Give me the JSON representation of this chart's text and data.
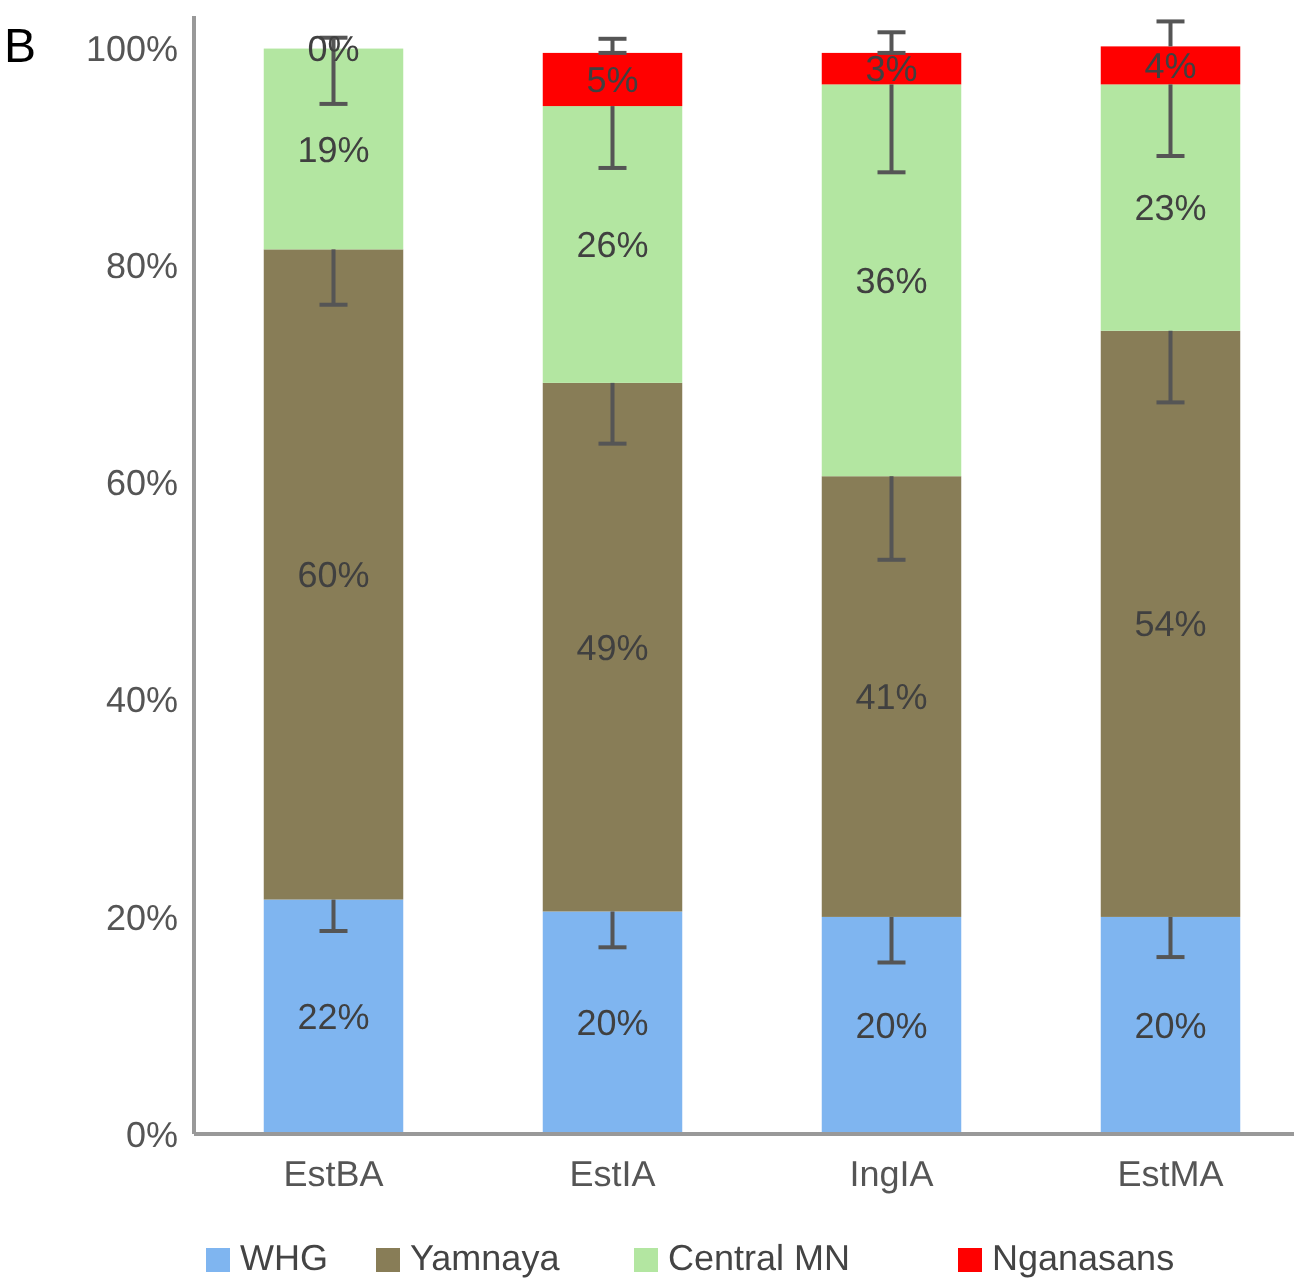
{
  "chart_data": {
    "type": "bar",
    "stacked": true,
    "categories": [
      "EstBA",
      "EstIA",
      "IngIA",
      "EstMA"
    ],
    "series": [
      {
        "name": "WHG",
        "color": "#7fb5f0",
        "values": [
          21.6,
          20.5,
          20.0,
          20.0
        ],
        "value_labels": [
          "22%",
          "20%",
          "20%",
          "20%"
        ],
        "errors": [
          [
            18.7,
            21.6
          ],
          [
            17.2,
            20.5
          ],
          [
            15.8,
            20.0
          ],
          [
            16.3,
            20.0
          ]
        ]
      },
      {
        "name": "Yamnaya",
        "color": "#887d57",
        "values": [
          59.9,
          48.7,
          40.6,
          54.0
        ],
        "value_labels": [
          "60%",
          "49%",
          "41%",
          "54%"
        ],
        "errors": [
          [
            76.4,
            81.5
          ],
          [
            63.6,
            69.2
          ],
          [
            52.9,
            60.6
          ],
          [
            67.4,
            74.0
          ]
        ]
      },
      {
        "name": "Central MN",
        "color": "#b3e6a1",
        "values": [
          18.5,
          25.5,
          36.1,
          22.7
        ],
        "value_labels": [
          "19%",
          "26%",
          "36%",
          "23%"
        ],
        "errors": [
          [
            94.9,
            101.0
          ],
          [
            89.0,
            94.7
          ],
          [
            88.6,
            96.7
          ],
          [
            90.1,
            96.7
          ]
        ]
      },
      {
        "name": "Nganasans",
        "color": "#ff0000",
        "values": [
          0,
          4.9,
          2.9,
          3.5
        ],
        "value_labels": [
          "0%",
          "5%",
          "3%",
          "4%"
        ],
        "errors": [
          null,
          [
            99.6,
            100.9
          ],
          [
            99.6,
            101.5
          ],
          [
            100.2,
            102.5
          ]
        ]
      }
    ],
    "ylim": [
      0,
      103
    ],
    "yticks": [
      {
        "value": 0,
        "label": "0%"
      },
      {
        "value": 20,
        "label": "20%"
      },
      {
        "value": 40,
        "label": "40%"
      },
      {
        "value": 60,
        "label": "60%"
      },
      {
        "value": 80,
        "label": "80%"
      },
      {
        "value": 100,
        "label": "100%"
      }
    ],
    "grid": false,
    "legend": "bottom",
    "annotations": [
      "B"
    ]
  }
}
